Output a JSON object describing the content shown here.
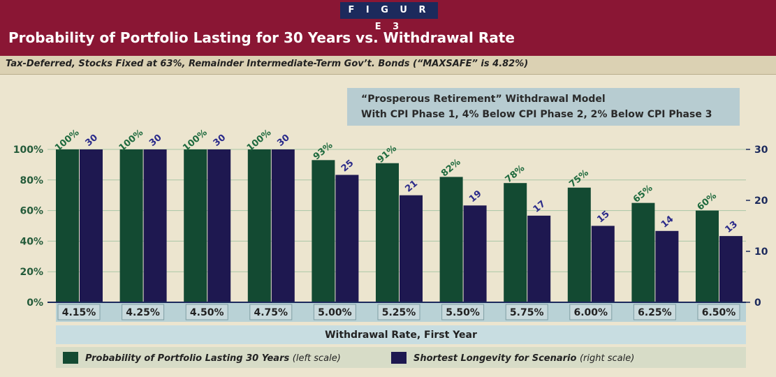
{
  "figure_label": "F I G U R E   3",
  "chart_data": {
    "type": "bar",
    "title": "Probability of Portfolio Lasting for 30 Years vs. Withdrawal Rate",
    "subtitle": "Tax-Deferred, Stocks Fixed at 63%, Remainder Intermediate-Term Gov’t. Bonds (“MAXSAFE” is 4.82%)",
    "annotation": [
      "“Prosperous Retirement” Withdrawal Model",
      "With CPI Phase 1, 4% Below CPI Phase 2, 2% Below CPI Phase 3"
    ],
    "xlabel": "Withdrawal Rate, First Year",
    "categories": [
      "4.15%",
      "4.25%",
      "4.50%",
      "4.75%",
      "5.00%",
      "5.25%",
      "5.50%",
      "5.75%",
      "6.00%",
      "6.25%",
      "6.50%"
    ],
    "y_left": {
      "ticks": [
        "0%",
        "20%",
        "40%",
        "60%",
        "80%",
        "100%"
      ],
      "ylim": [
        0,
        100
      ]
    },
    "y_right": {
      "ticks": [
        "0",
        "10",
        "20",
        "30"
      ],
      "ylim": [
        0,
        30
      ]
    },
    "grid": true,
    "legend_position": "bottom",
    "series": [
      {
        "name": "Probability of Portfolio Lasting 30 Years",
        "axis_note": "(left scale)",
        "axis": "left",
        "color": "#134a32",
        "values": [
          100,
          100,
          100,
          100,
          93,
          91,
          82,
          78,
          75,
          65,
          60
        ],
        "labels": [
          "100%",
          "100%",
          "100%",
          "100%",
          "93%",
          "91%",
          "82%",
          "78%",
          "75%",
          "65%",
          "60%"
        ]
      },
      {
        "name": "Shortest Longevity for Scenario",
        "axis_note": "(right scale)",
        "axis": "right",
        "color": "#1e1850",
        "values": [
          30,
          30,
          30,
          30,
          25,
          21,
          19,
          17,
          15,
          14,
          13
        ],
        "labels": [
          "30",
          "30",
          "30",
          "30",
          "25",
          "21",
          "19",
          "17",
          "15",
          "14",
          "13"
        ]
      }
    ]
  }
}
